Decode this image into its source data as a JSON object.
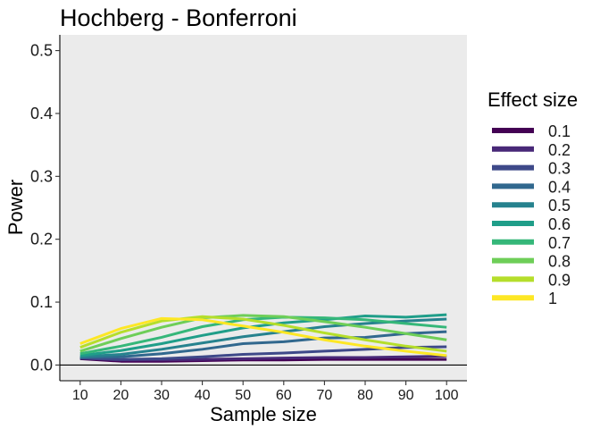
{
  "chart_data": {
    "type": "line",
    "title": "Hochberg - Bonferroni",
    "xlabel": "Sample size",
    "ylabel": "Power",
    "x": [
      10,
      20,
      30,
      40,
      50,
      60,
      70,
      80,
      90,
      100
    ],
    "xlim": [
      5,
      105
    ],
    "ylim": [
      -0.025,
      0.525
    ],
    "y_ticks": [
      "0.0",
      "0.1",
      "0.2",
      "0.3",
      "0.4",
      "0.5"
    ],
    "y_tick_values": [
      0,
      0.1,
      0.2,
      0.3,
      0.4,
      0.5
    ],
    "x_ticks": [
      "10",
      "20",
      "30",
      "40",
      "50",
      "60",
      "70",
      "80",
      "90",
      "100"
    ],
    "x_tick_values": [
      10,
      20,
      30,
      40,
      50,
      60,
      70,
      80,
      90,
      100
    ],
    "hline_y": 0,
    "grid": false,
    "panel_background": "#ebebeb",
    "legend_title": "Effect size",
    "legend_position": "right",
    "series": [
      {
        "name": "0.1",
        "color": "#440154",
        "values": [
          0.01,
          0.006,
          0.006,
          0.007,
          0.008,
          0.008,
          0.009,
          0.009,
          0.009,
          0.009
        ]
      },
      {
        "name": "0.2",
        "color": "#482878",
        "values": [
          0.011,
          0.008,
          0.008,
          0.009,
          0.01,
          0.011,
          0.012,
          0.012,
          0.013,
          0.014
        ]
      },
      {
        "name": "0.3",
        "color": "#3e4989",
        "values": [
          0.011,
          0.009,
          0.01,
          0.013,
          0.017,
          0.019,
          0.022,
          0.025,
          0.028,
          0.029
        ]
      },
      {
        "name": "0.4",
        "color": "#31688e",
        "values": [
          0.012,
          0.013,
          0.018,
          0.025,
          0.034,
          0.037,
          0.043,
          0.044,
          0.05,
          0.053
        ]
      },
      {
        "name": "0.5",
        "color": "#26828e",
        "values": [
          0.013,
          0.017,
          0.025,
          0.035,
          0.045,
          0.053,
          0.061,
          0.066,
          0.07,
          0.073
        ]
      },
      {
        "name": "0.6",
        "color": "#1f9e89",
        "values": [
          0.015,
          0.023,
          0.034,
          0.047,
          0.059,
          0.067,
          0.072,
          0.078,
          0.076,
          0.08
        ]
      },
      {
        "name": "0.7",
        "color": "#35b779",
        "values": [
          0.018,
          0.03,
          0.044,
          0.061,
          0.072,
          0.076,
          0.075,
          0.072,
          0.066,
          0.06
        ]
      },
      {
        "name": "0.8",
        "color": "#6ece58",
        "values": [
          0.022,
          0.042,
          0.06,
          0.075,
          0.079,
          0.077,
          0.069,
          0.06,
          0.05,
          0.04
        ]
      },
      {
        "name": "0.9",
        "color": "#b5de2b",
        "values": [
          0.028,
          0.052,
          0.07,
          0.077,
          0.073,
          0.063,
          0.051,
          0.04,
          0.03,
          0.022
        ]
      },
      {
        "name": "1",
        "color": "#fde725",
        "values": [
          0.034,
          0.058,
          0.074,
          0.072,
          0.062,
          0.052,
          0.04,
          0.03,
          0.022,
          0.015
        ]
      }
    ]
  }
}
